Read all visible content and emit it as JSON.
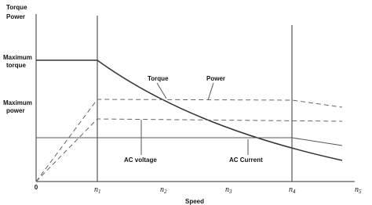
{
  "axes": {
    "y_title_1": "Torque",
    "y_title_2": "Power",
    "x_title": "Speed",
    "origin": "0"
  },
  "y_labels": [
    {
      "line1": "Maximum",
      "line2": "torque"
    },
    {
      "line1": "Maximum",
      "line2": "power"
    }
  ],
  "x_ticks": [
    {
      "main": "n",
      "sub": "1"
    },
    {
      "main": "n",
      "sub": "2"
    },
    {
      "main": "n",
      "sub": "3"
    },
    {
      "main": "n",
      "sub": "4"
    },
    {
      "main": "n",
      "sub": "5"
    }
  ],
  "curve_labels": {
    "torque": "Torque",
    "power": "Power",
    "ac_voltage": "AC voltage",
    "ac_current": "AC Current"
  }
}
